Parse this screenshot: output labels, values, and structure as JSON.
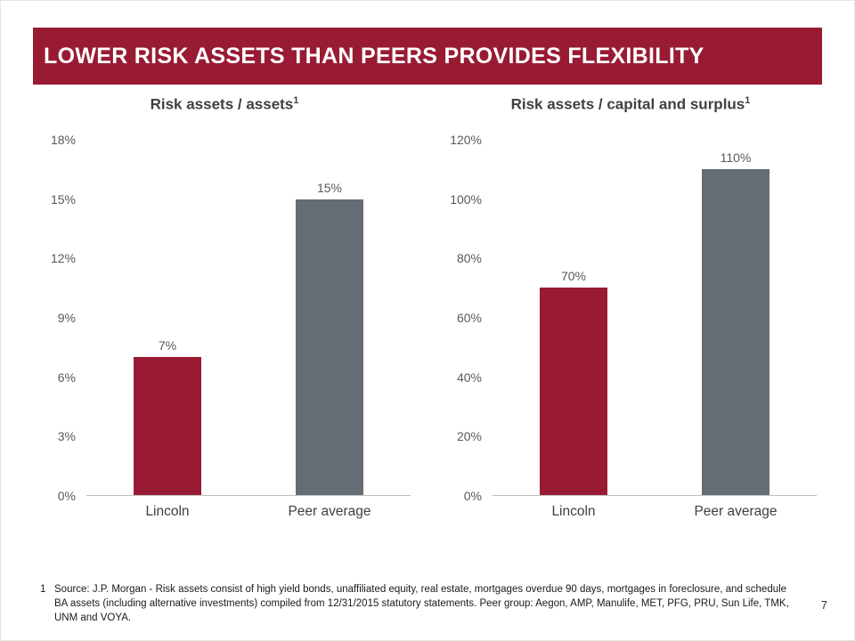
{
  "slide": {
    "title": "LOWER RISK ASSETS THAN PEERS PROVIDES FLEXIBILITY",
    "page_number": "7",
    "footnote_marker": "1",
    "footnote_text": "Source: J.P. Morgan - Risk assets consist of high yield bonds, unaffiliated equity, real estate, mortgages overdue 90 days, mortgages in foreclosure, and schedule BA assets (including alternative investments) compiled from 12/31/2015 statutory statements. Peer group: Aegon, AMP, Manulife, MET, PFG, PRU, Sun Life, TMK, UNM and VOYA."
  },
  "colors": {
    "header_bg": "#981B33",
    "lincoln_bar": "#981B33",
    "peer_bar": "#646C74",
    "axis_text": "#595959",
    "title_text": "#404040"
  },
  "chart_data": [
    {
      "type": "bar",
      "title": "Risk assets / assets",
      "title_superscript": "1",
      "categories": [
        "Lincoln",
        "Peer average"
      ],
      "values": [
        7,
        15
      ],
      "data_labels": [
        "7%",
        "15%"
      ],
      "ylim": [
        0,
        18
      ],
      "yticks": [
        "0%",
        "3%",
        "6%",
        "9%",
        "12%",
        "15%",
        "18%"
      ],
      "bar_colors": [
        "#981B33",
        "#646C74"
      ],
      "grid": false,
      "legend": "none"
    },
    {
      "type": "bar",
      "title": "Risk assets / capital and surplus",
      "title_superscript": "1",
      "categories": [
        "Lincoln",
        "Peer average"
      ],
      "values": [
        70,
        110
      ],
      "data_labels": [
        "70%",
        "110%"
      ],
      "ylim": [
        0,
        120
      ],
      "yticks": [
        "0%",
        "20%",
        "40%",
        "60%",
        "80%",
        "100%",
        "120%"
      ],
      "bar_colors": [
        "#981B33",
        "#646C74"
      ],
      "grid": false,
      "legend": "none"
    }
  ]
}
